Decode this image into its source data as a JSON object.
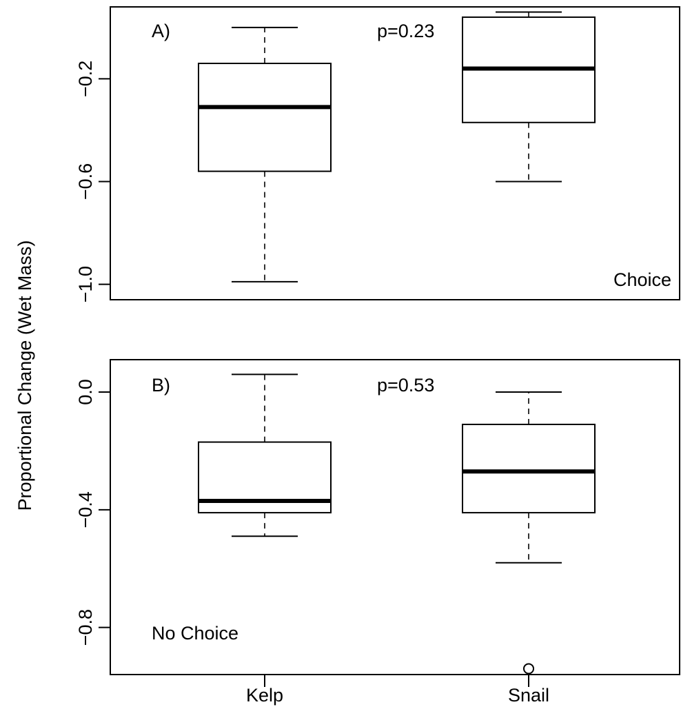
{
  "figure": {
    "ylabel": "Proportional Change    (Wet Mass)",
    "x_tick_labels": [
      "Kelp",
      "Snail"
    ]
  },
  "chart_data": [
    {
      "type": "boxplot",
      "panel_label": "A)",
      "annotation": "p=0.23",
      "condition_label": "Choice",
      "categories": [
        "Kelp",
        "Snail"
      ],
      "ylim": [
        -1.06,
        0.08
      ],
      "y_ticks": [
        -1.0,
        -0.6,
        -0.2
      ],
      "y_tick_labels": [
        "−1.0",
        "−0.6",
        "−0.2"
      ],
      "boxes": [
        {
          "name": "Kelp",
          "whisker_low": -0.99,
          "q1": -0.56,
          "median": -0.31,
          "q3": -0.14,
          "whisker_high": 0.0,
          "outliers": []
        },
        {
          "name": "Snail",
          "whisker_low": -0.6,
          "q1": -0.37,
          "median": -0.16,
          "q3": 0.04,
          "whisker_high": 0.06,
          "outliers": []
        }
      ]
    },
    {
      "type": "boxplot",
      "panel_label": "B)",
      "annotation": "p=0.53",
      "condition_label": "No Choice",
      "categories": [
        "Kelp",
        "Snail"
      ],
      "ylim": [
        -0.96,
        0.11
      ],
      "y_ticks": [
        -0.8,
        -0.4,
        0.0
      ],
      "y_tick_labels": [
        "−0.8",
        "−0.4",
        "0.0"
      ],
      "boxes": [
        {
          "name": "Kelp",
          "whisker_low": -0.49,
          "q1": -0.41,
          "median": -0.37,
          "q3": -0.17,
          "whisker_high": 0.06,
          "outliers": []
        },
        {
          "name": "Snail",
          "whisker_low": -0.58,
          "q1": -0.41,
          "median": -0.27,
          "q3": -0.11,
          "whisker_high": 0.0,
          "outliers": [
            -0.94
          ]
        }
      ]
    }
  ]
}
